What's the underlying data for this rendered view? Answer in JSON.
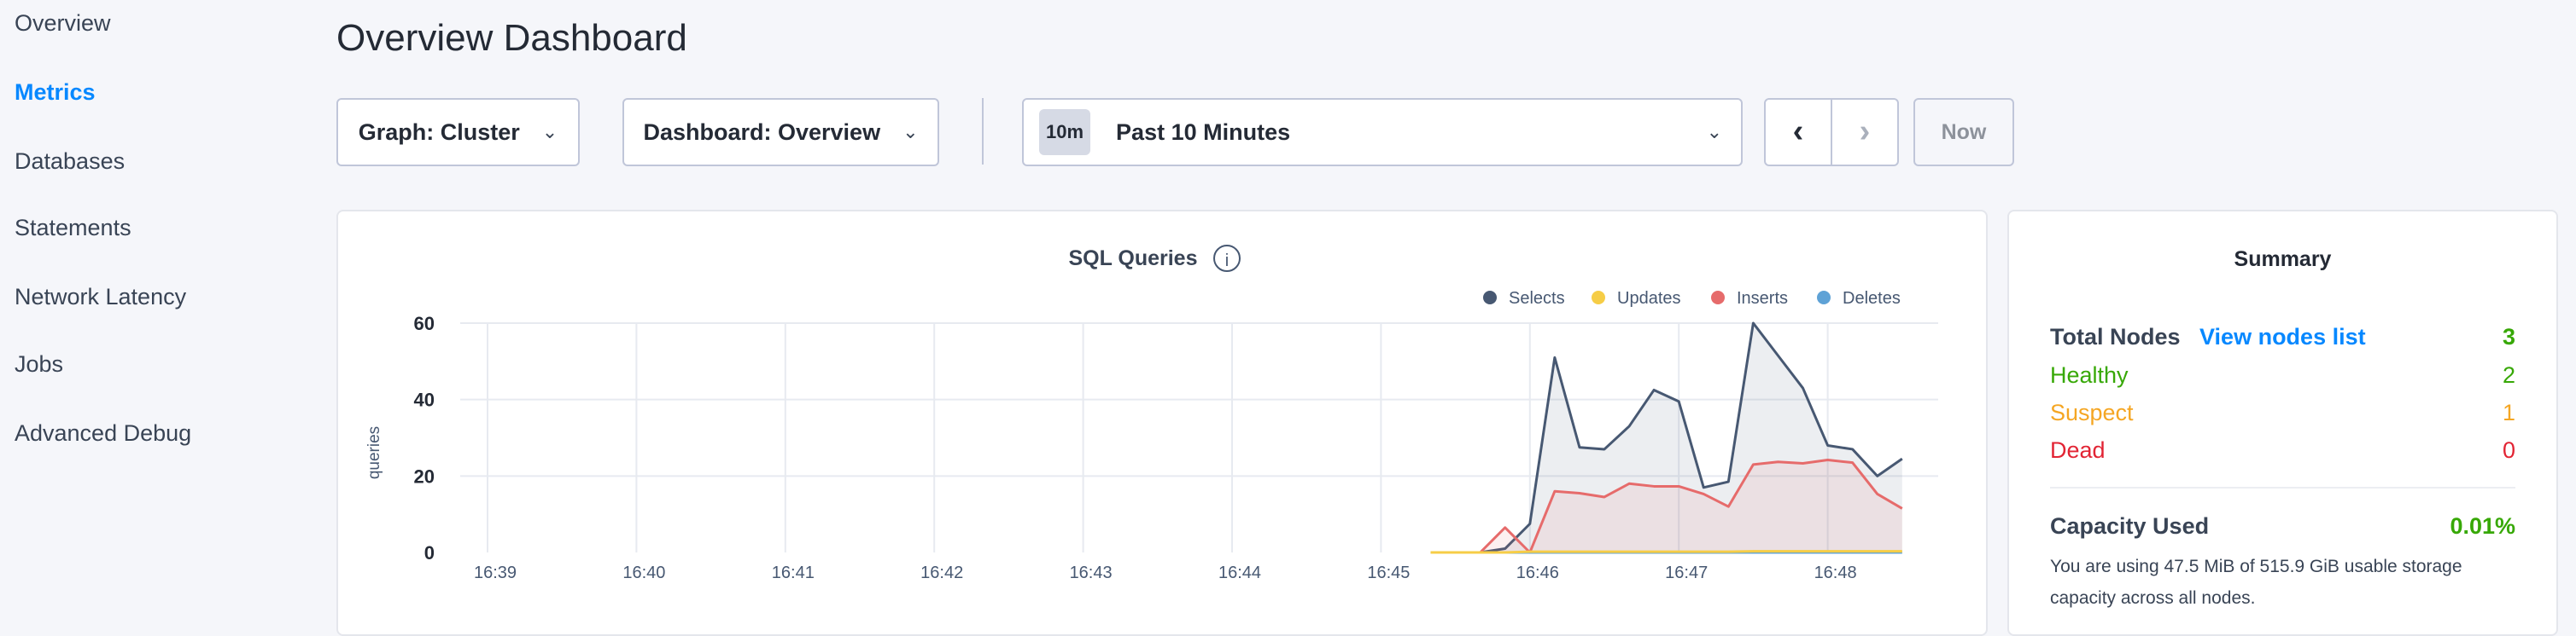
{
  "sidebar": {
    "items": [
      {
        "label": "Overview"
      },
      {
        "label": "Metrics",
        "active": true
      },
      {
        "label": "Databases"
      },
      {
        "label": "Statements"
      },
      {
        "label": "Network Latency"
      },
      {
        "label": "Jobs"
      },
      {
        "label": "Advanced Debug"
      }
    ]
  },
  "header": {
    "title": "Overview Dashboard"
  },
  "toolbar": {
    "graph_label": "Graph: Cluster",
    "dashboard_label": "Dashboard: Overview",
    "time_badge": "10m",
    "time_label": "Past 10 Minutes",
    "now_label": "Now"
  },
  "summary": {
    "title": "Summary",
    "total_label": "Total Nodes",
    "view_link": "View nodes list",
    "total": "3",
    "healthy_label": "Healthy",
    "healthy": "2",
    "suspect_label": "Suspect",
    "suspect": "1",
    "dead_label": "Dead",
    "dead": "0",
    "capacity_label": "Capacity Used",
    "capacity": "0.01%",
    "capacity_desc_1": "You are using 47.5 MiB of 515.9 GiB usable storage",
    "capacity_desc_2": "capacity across all nodes.",
    "colors": {
      "healthy": "#37a806",
      "suspect": "#f5a623",
      "dead": "#e22434",
      "link": "#0788ff"
    }
  },
  "chart_data": {
    "type": "area",
    "title": "SQL Queries",
    "ylabel": "queries",
    "xlabel": "",
    "ylim": [
      0,
      60
    ],
    "yticks": [
      0,
      20,
      40,
      60
    ],
    "xticks": [
      "16:39",
      "16:40",
      "16:41",
      "16:42",
      "16:43",
      "16:44",
      "16:45",
      "16:46",
      "16:47",
      "16:48"
    ],
    "grid": true,
    "legend": "top-right",
    "x": [
      "16:45:20",
      "16:45:30",
      "16:45:40",
      "16:45:50",
      "16:46:00",
      "16:46:10",
      "16:46:20",
      "16:46:30",
      "16:46:40",
      "16:46:50",
      "16:47:00",
      "16:47:10",
      "16:47:20",
      "16:47:30",
      "16:47:40",
      "16:47:50",
      "16:48:00",
      "16:48:10",
      "16:48:20",
      "16:48:30"
    ],
    "series": [
      {
        "name": "Selects",
        "color": "#475872",
        "values": [
          0,
          0,
          0,
          1,
          7.5,
          51,
          27.5,
          27,
          33,
          42.5,
          39.5,
          17,
          18.5,
          60,
          51.5,
          43,
          28,
          27,
          20,
          24.5
        ]
      },
      {
        "name": "Updates",
        "color": "#f6cd46",
        "values": [
          0,
          0,
          0,
          0,
          0.2,
          0.2,
          0.2,
          0.2,
          0.2,
          0.2,
          0.2,
          0.2,
          0.2,
          0.3,
          0.3,
          0.3,
          0.3,
          0.3,
          0.3,
          0.3
        ]
      },
      {
        "name": "Inserts",
        "color": "#e66b6b",
        "values": [
          0,
          0,
          0,
          6.5,
          0,
          16,
          15.5,
          14.5,
          18,
          17.3,
          17.3,
          15.3,
          12,
          23,
          23.7,
          23.3,
          24.2,
          23.5,
          15.3,
          11.5
        ]
      },
      {
        "name": "Deletes",
        "color": "#5ea2d6",
        "values": [
          0,
          0,
          0,
          0,
          0,
          0,
          0,
          0,
          0,
          0,
          0,
          0,
          0,
          0,
          0,
          0,
          0,
          0,
          0,
          0
        ]
      }
    ]
  }
}
